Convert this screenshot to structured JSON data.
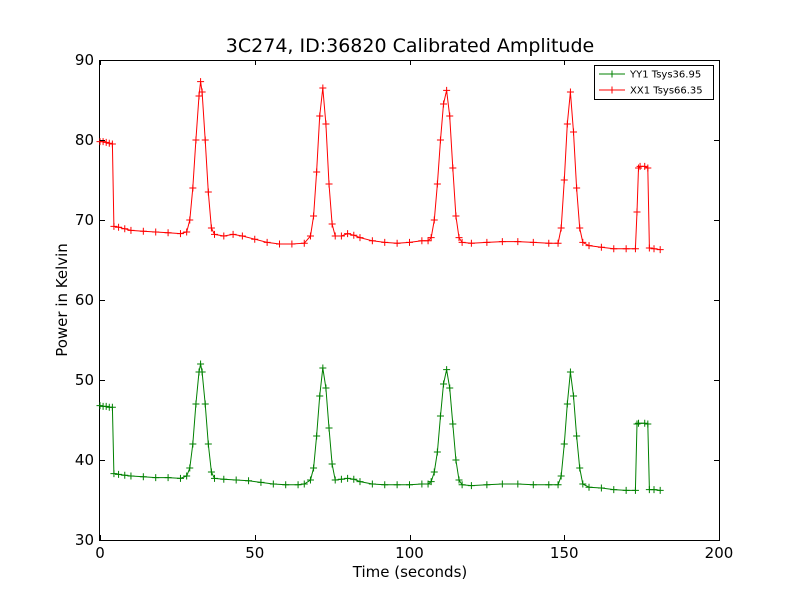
{
  "chart_data": {
    "type": "line",
    "title": "3C274, ID:36820 Calibrated Amplitude",
    "xlabel": "Time (seconds)",
    "ylabel": "Power in Kelvin",
    "xlim": [
      0,
      200
    ],
    "ylim": [
      30,
      90
    ],
    "xticks": [
      0,
      50,
      100,
      150,
      200
    ],
    "yticks": [
      30,
      40,
      50,
      60,
      70,
      80,
      90
    ],
    "grid": false,
    "legend_position": "top-right",
    "marker": "+",
    "series": [
      {
        "name": "YY1 Tsys36.95",
        "color": "#008000",
        "points": [
          [
            0,
            46.8
          ],
          [
            1,
            46.7
          ],
          [
            2,
            46.7
          ],
          [
            3,
            46.6
          ],
          [
            4,
            46.6
          ],
          [
            4.5,
            38.3
          ],
          [
            6,
            38.2
          ],
          [
            8,
            38.1
          ],
          [
            10,
            38.0
          ],
          [
            14,
            37.9
          ],
          [
            18,
            37.8
          ],
          [
            22,
            37.8
          ],
          [
            26,
            37.7
          ],
          [
            28,
            38.0
          ],
          [
            29,
            39.0
          ],
          [
            30,
            42.0
          ],
          [
            31,
            47.0
          ],
          [
            32,
            51.0
          ],
          [
            32.5,
            52.0
          ],
          [
            33,
            51.0
          ],
          [
            34,
            47.0
          ],
          [
            35,
            42.0
          ],
          [
            36,
            38.5
          ],
          [
            37,
            37.7
          ],
          [
            40,
            37.6
          ],
          [
            44,
            37.5
          ],
          [
            48,
            37.4
          ],
          [
            52,
            37.2
          ],
          [
            56,
            37.0
          ],
          [
            60,
            36.9
          ],
          [
            64,
            36.9
          ],
          [
            66,
            37.0
          ],
          [
            68,
            37.5
          ],
          [
            69,
            39.0
          ],
          [
            70,
            43.0
          ],
          [
            71,
            48.0
          ],
          [
            72,
            51.5
          ],
          [
            73,
            49.0
          ],
          [
            74,
            44.0
          ],
          [
            75,
            39.5
          ],
          [
            76,
            37.5
          ],
          [
            78,
            37.6
          ],
          [
            80,
            37.7
          ],
          [
            82,
            37.6
          ],
          [
            84,
            37.3
          ],
          [
            88,
            37.0
          ],
          [
            92,
            36.9
          ],
          [
            96,
            36.9
          ],
          [
            100,
            36.9
          ],
          [
            104,
            37.0
          ],
          [
            106,
            37.0
          ],
          [
            107,
            37.3
          ],
          [
            108,
            38.5
          ],
          [
            109,
            41.0
          ],
          [
            110,
            45.5
          ],
          [
            111,
            49.5
          ],
          [
            112,
            51.3
          ],
          [
            113,
            49.0
          ],
          [
            114,
            44.5
          ],
          [
            115,
            40.0
          ],
          [
            116,
            37.5
          ],
          [
            117,
            36.9
          ],
          [
            120,
            36.8
          ],
          [
            125,
            36.9
          ],
          [
            130,
            37.0
          ],
          [
            135,
            37.0
          ],
          [
            140,
            36.9
          ],
          [
            145,
            36.9
          ],
          [
            148,
            36.9
          ],
          [
            149,
            38.0
          ],
          [
            150,
            42.0
          ],
          [
            151,
            47.0
          ],
          [
            152,
            51.0
          ],
          [
            153,
            48.0
          ],
          [
            154,
            43.0
          ],
          [
            155,
            39.0
          ],
          [
            156,
            37.0
          ],
          [
            158,
            36.6
          ],
          [
            162,
            36.5
          ],
          [
            166,
            36.3
          ],
          [
            170,
            36.2
          ],
          [
            173,
            36.2
          ],
          [
            173.5,
            44.5
          ],
          [
            174,
            44.6
          ],
          [
            176,
            44.6
          ],
          [
            177,
            44.5
          ],
          [
            177.5,
            36.3
          ],
          [
            179,
            36.3
          ],
          [
            181,
            36.2
          ]
        ]
      },
      {
        "name": "XX1 Tsys66.35",
        "color": "#ff0000",
        "points": [
          [
            0,
            79.8
          ],
          [
            1,
            79.8
          ],
          [
            2,
            79.7
          ],
          [
            3,
            79.6
          ],
          [
            4,
            79.5
          ],
          [
            4.5,
            69.2
          ],
          [
            6,
            69.1
          ],
          [
            8,
            68.9
          ],
          [
            10,
            68.7
          ],
          [
            14,
            68.6
          ],
          [
            18,
            68.5
          ],
          [
            22,
            68.4
          ],
          [
            26,
            68.3
          ],
          [
            28,
            68.5
          ],
          [
            29,
            70.0
          ],
          [
            30,
            74.0
          ],
          [
            31,
            80.0
          ],
          [
            32,
            85.5
          ],
          [
            32.5,
            87.3
          ],
          [
            33,
            86.0
          ],
          [
            34,
            80.0
          ],
          [
            35,
            73.5
          ],
          [
            36,
            69.0
          ],
          [
            37,
            68.2
          ],
          [
            40,
            68.0
          ],
          [
            43,
            68.2
          ],
          [
            46,
            68.0
          ],
          [
            50,
            67.6
          ],
          [
            54,
            67.2
          ],
          [
            58,
            67.0
          ],
          [
            62,
            67.0
          ],
          [
            66,
            67.1
          ],
          [
            68,
            68.0
          ],
          [
            69,
            70.5
          ],
          [
            70,
            76.0
          ],
          [
            71,
            83.0
          ],
          [
            72,
            86.5
          ],
          [
            73,
            82.0
          ],
          [
            74,
            74.5
          ],
          [
            75,
            69.5
          ],
          [
            76,
            68.0
          ],
          [
            78,
            68.0
          ],
          [
            80,
            68.3
          ],
          [
            82,
            68.1
          ],
          [
            84,
            67.8
          ],
          [
            88,
            67.4
          ],
          [
            92,
            67.2
          ],
          [
            96,
            67.1
          ],
          [
            100,
            67.2
          ],
          [
            104,
            67.4
          ],
          [
            106,
            67.4
          ],
          [
            107,
            67.8
          ],
          [
            108,
            70.0
          ],
          [
            109,
            74.5
          ],
          [
            110,
            80.0
          ],
          [
            111,
            84.5
          ],
          [
            112,
            86.2
          ],
          [
            113,
            83.0
          ],
          [
            114,
            76.5
          ],
          [
            115,
            70.5
          ],
          [
            116,
            67.8
          ],
          [
            117,
            67.2
          ],
          [
            120,
            67.1
          ],
          [
            125,
            67.2
          ],
          [
            130,
            67.3
          ],
          [
            135,
            67.3
          ],
          [
            140,
            67.2
          ],
          [
            145,
            67.1
          ],
          [
            148,
            67.1
          ],
          [
            149,
            69.0
          ],
          [
            150,
            75.0
          ],
          [
            151,
            82.0
          ],
          [
            152,
            86.0
          ],
          [
            153,
            81.0
          ],
          [
            154,
            74.0
          ],
          [
            155,
            69.0
          ],
          [
            156,
            67.2
          ],
          [
            158,
            66.8
          ],
          [
            162,
            66.6
          ],
          [
            166,
            66.4
          ],
          [
            170,
            66.4
          ],
          [
            173,
            66.4
          ],
          [
            173.5,
            71.0
          ],
          [
            174,
            76.5
          ],
          [
            174.5,
            76.7
          ],
          [
            176,
            76.7
          ],
          [
            177,
            76.5
          ],
          [
            177.5,
            66.5
          ],
          [
            179,
            66.4
          ],
          [
            181,
            66.3
          ]
        ]
      }
    ]
  }
}
